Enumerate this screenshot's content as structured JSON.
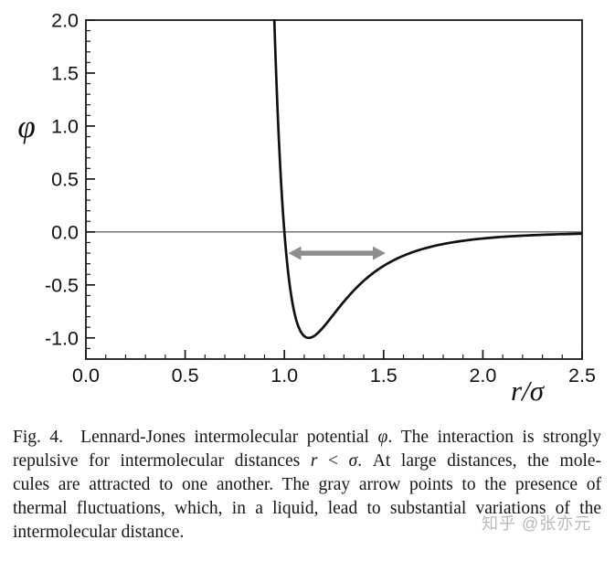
{
  "watermark": {
    "text": "知乎 @张亦元",
    "color": "#b9b9b9"
  },
  "caption": {
    "lines": [
      {
        "justify": true,
        "segments": [
          {
            "t": "Fig. 4.  Lennard-Jones intermolecular potential "
          },
          {
            "t": "φ",
            "i": true
          },
          {
            "t": ". The interaction is strongly"
          }
        ]
      },
      {
        "justify": true,
        "segments": [
          {
            "t": "repulsive for intermolecular distances "
          },
          {
            "t": "r",
            "i": true
          },
          {
            "t": " < "
          },
          {
            "t": "σ",
            "i": true
          },
          {
            "t": ". At large distances, the mole-"
          }
        ]
      },
      {
        "justify": true,
        "segments": [
          {
            "t": "cules are attracted to one another. The gray arrow points to the presence of"
          }
        ]
      },
      {
        "justify": true,
        "segments": [
          {
            "t": "thermal fluctuations, which, in a liquid, lead to substantial variations of the"
          }
        ]
      },
      {
        "justify": false,
        "segments": [
          {
            "t": "intermolecular distance."
          }
        ]
      }
    ]
  },
  "chart_data": {
    "type": "line",
    "title": "",
    "xlabel": "r/σ",
    "ylabel": "φ",
    "xlim": [
      0.0,
      2.5
    ],
    "ylim": [
      -1.2,
      2.0
    ],
    "x_major_ticks": [
      0.0,
      0.5,
      1.0,
      1.5,
      2.0,
      2.5
    ],
    "y_major_ticks": [
      -1.0,
      -0.5,
      0.0,
      0.5,
      1.0,
      1.5,
      2.0
    ],
    "minor_tick_step": 0.1,
    "tick_label_decimals": 1,
    "grid": false,
    "zero_line": true,
    "legend": "none",
    "colors": {
      "curve": "#101010",
      "frame": "#1a1a1a",
      "zero_line": "#2b2b2b",
      "tick_label": "#111111"
    },
    "series": [
      {
        "name": "Lennard-Jones potential",
        "formula": "phi(r) = 4*epsilon*((sigma/r)^12 - (sigma/r)^6)",
        "epsilon": 1,
        "sigma": 1,
        "r_sample_start": 0.9485,
        "r_sample_end": 2.5,
        "key_points": {
          "zero_crossing_r": 1.0,
          "minimum_r": 1.122,
          "minimum_phi": -1.0
        },
        "points": [
          [
            0.95,
            1.96
          ],
          [
            0.96,
            1.42
          ],
          [
            0.97,
            0.96
          ],
          [
            0.98,
            0.58
          ],
          [
            0.99,
            0.26
          ],
          [
            1.0,
            0.0
          ],
          [
            1.02,
            -0.4
          ],
          [
            1.05,
            -0.76
          ],
          [
            1.08,
            -0.93
          ],
          [
            1.12,
            -1.0
          ],
          [
            1.16,
            -0.97
          ],
          [
            1.2,
            -0.89
          ],
          [
            1.3,
            -0.66
          ],
          [
            1.4,
            -0.46
          ],
          [
            1.5,
            -0.32
          ],
          [
            1.6,
            -0.22
          ],
          [
            1.8,
            -0.11
          ],
          [
            2.0,
            -0.06
          ],
          [
            2.2,
            -0.03
          ],
          [
            2.5,
            -0.02
          ]
        ]
      }
    ],
    "annotation_arrow": {
      "r_start": 1.02,
      "r_end": 1.51,
      "phi": -0.2,
      "color": "#8e8e8e"
    }
  }
}
